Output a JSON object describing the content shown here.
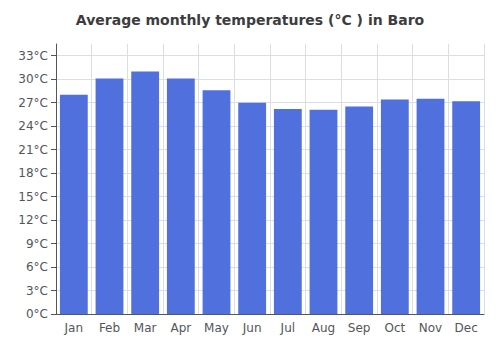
{
  "chart_data": {
    "type": "bar",
    "title": "Average monthly temperatures (°C ) in Baro",
    "categories": [
      "Jan",
      "Feb",
      "Mar",
      "Apr",
      "May",
      "Jun",
      "Jul",
      "Aug",
      "Sep",
      "Oct",
      "Nov",
      "Dec"
    ],
    "values": [
      28.0,
      30.1,
      31.0,
      30.1,
      28.6,
      27.0,
      26.2,
      26.1,
      26.5,
      27.4,
      27.5,
      27.2
    ],
    "ylim": [
      0,
      34.5
    ],
    "yticks": [
      {
        "value": 0,
        "label": "0°C"
      },
      {
        "value": 3,
        "label": "3°C"
      },
      {
        "value": 6,
        "label": "6°C"
      },
      {
        "value": 9,
        "label": "9°C"
      },
      {
        "value": 12,
        "label": "12°C"
      },
      {
        "value": 15,
        "label": "15°C"
      },
      {
        "value": 18,
        "label": "18°C"
      },
      {
        "value": 21,
        "label": "21°C"
      },
      {
        "value": 24,
        "label": "24°C"
      },
      {
        "value": 27,
        "label": "27°C"
      },
      {
        "value": 30,
        "label": "30°C"
      },
      {
        "value": 33,
        "label": "33°C"
      }
    ],
    "grid": true
  }
}
